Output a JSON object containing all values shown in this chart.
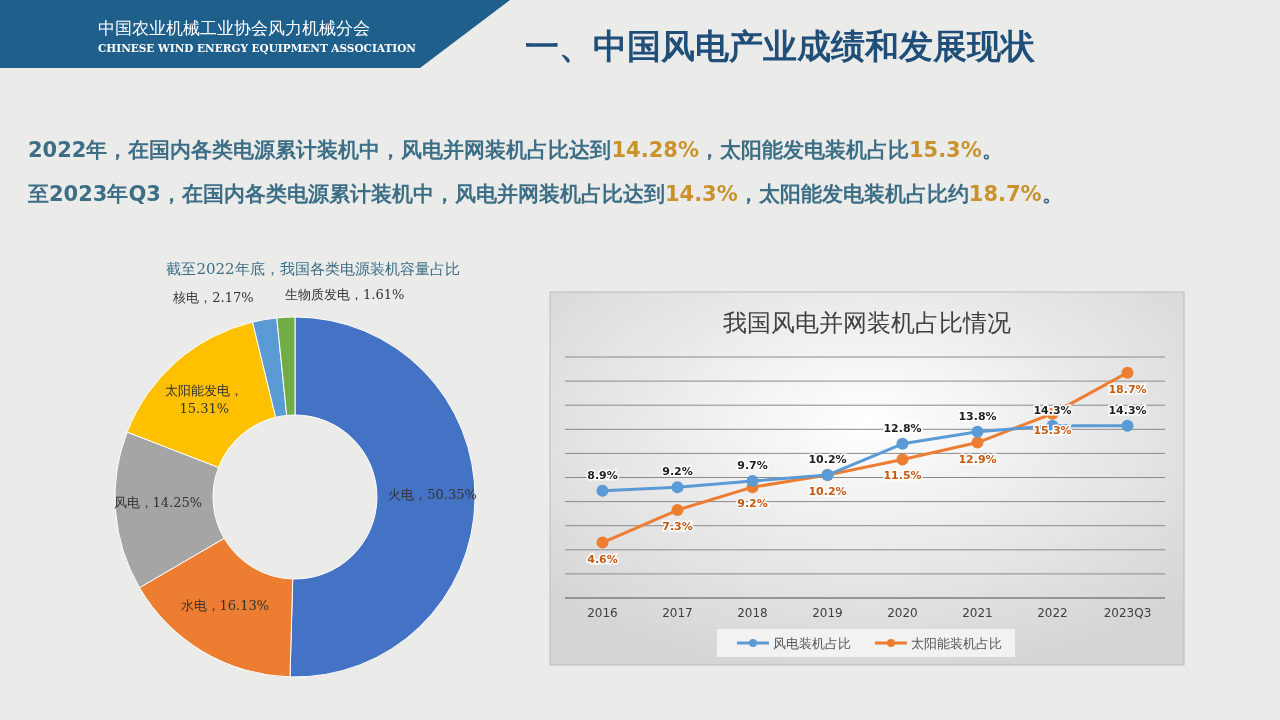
{
  "chart_data": [
    {
      "type": "donut",
      "title": "截至2022年底，我国各类电源装机容量占比",
      "categories": [
        "火电",
        "水电",
        "风电",
        "太阳能发电",
        "核电",
        "生物质发电"
      ],
      "values": [
        50.35,
        16.13,
        14.25,
        15.31,
        2.17,
        1.61
      ],
      "colors": [
        "#4472c4",
        "#ed7d31",
        "#a5a5a5",
        "#ffc000",
        "#5b9bd5",
        "#70ad47"
      ],
      "value_labels": [
        "，50.35%",
        "，16.13%",
        "，14.25%",
        "，15.31%",
        "，2.17%",
        "，1.61%"
      ],
      "annotations": [
        "中国农业机械工业协会风力机械分会",
        "CHINESE WIND ENERGY EQUIPMENT ASSOCIATION",
        "一、中国风电产业成绩和发展现状",
        "2022年，在国内各类电源累计装机中，风电并网装机占比达到14.28%，太阳能发电装机占比15.3%。",
        "至2023年Q3，在国内各类电源累计装机中，风电并网装机占比达到14.3%，太阳能发电装机占比约18.7%。"
      ]
    },
    {
      "type": "line",
      "title": "我国风电并网装机占比情况",
      "categories": [
        "2016",
        "2017",
        "2018",
        "2019",
        "2020",
        "2021",
        "2022",
        "2023Q3"
      ],
      "series": [
        {
          "name": "风电装机占比",
          "color": "#5b9bd5",
          "values": [
            8.9,
            9.2,
            9.7,
            10.2,
            12.8,
            13.8,
            14.3,
            14.3
          ],
          "value_labels": [
            "8.9%",
            "9.2%",
            "9.7%",
            "10.2%",
            "12.8%",
            "13.8%",
            "14.3%",
            "14.3%"
          ]
        },
        {
          "name": "太阳能装机占比",
          "color": "#ed7d31",
          "values": [
            4.6,
            7.3,
            9.2,
            10.2,
            11.5,
            12.9,
            15.3,
            18.7
          ],
          "value_labels": [
            "4.6%",
            "7.3%",
            "9.2%",
            "10.2%",
            "11.5%",
            "12.9%",
            "15.3%",
            "18.7%"
          ]
        }
      ],
      "ylim": [
        0,
        20
      ],
      "yticks": [
        {
          "value": 0,
          "label": null
        },
        {
          "value": 2,
          "label": null
        },
        {
          "value": 4,
          "label": null
        },
        {
          "value": 6,
          "label": null
        },
        {
          "value": 8,
          "label": null
        },
        {
          "value": 10,
          "label": null
        },
        {
          "value": 12,
          "label": null
        },
        {
          "value": 14,
          "label": null
        },
        {
          "value": 16,
          "label": null
        },
        {
          "value": 18,
          "label": null
        },
        {
          "value": 20,
          "label": null
        }
      ],
      "tick_labels": "x",
      "grid": "y",
      "legend": "bottom",
      "marker": "circle",
      "line_style": "solid"
    }
  ]
}
